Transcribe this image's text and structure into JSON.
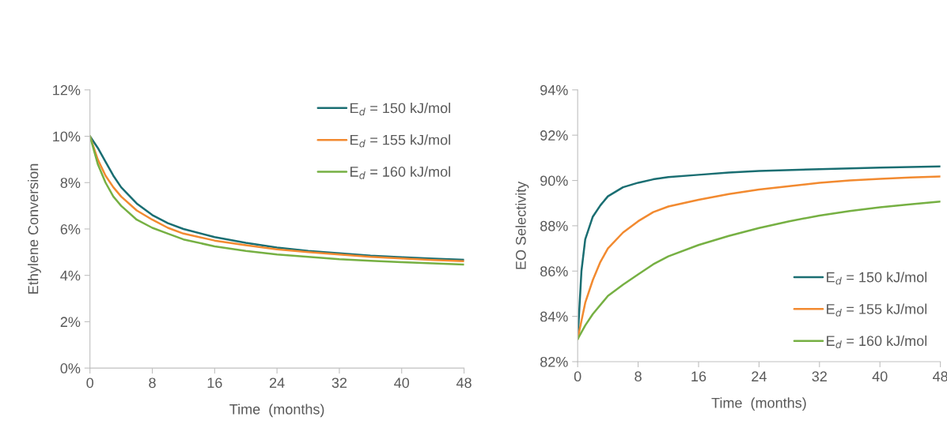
{
  "chart_data": [
    {
      "type": "line",
      "xlabel": "Time  (months)",
      "ylabel": "Ethylene Conversion",
      "xlim": [
        0,
        48
      ],
      "xticks": [
        0,
        8,
        16,
        24,
        32,
        40,
        48
      ],
      "ylim": [
        0,
        12
      ],
      "yticks": [
        {
          "value": 0,
          "label": "0%"
        },
        {
          "value": 2,
          "label": "2%"
        },
        {
          "value": 4,
          "label": "4%"
        },
        {
          "value": 6,
          "label": "6%"
        },
        {
          "value": 8,
          "label": "8%"
        },
        {
          "value": 10,
          "label": "10%"
        },
        {
          "value": 12,
          "label": "12%"
        }
      ],
      "grid": false,
      "legend": "top right",
      "marker": "none",
      "line_style": "solid",
      "series": [
        {
          "name": "E$_{d}$ = 150 kJ/mol",
          "color": "#1a6e72",
          "x": [
            0,
            1,
            2,
            3,
            4,
            6,
            8,
            10,
            12,
            16,
            20,
            24,
            28,
            32,
            36,
            40,
            44,
            48
          ],
          "values": [
            10,
            9.5,
            8.9,
            8.3,
            7.8,
            7.1,
            6.6,
            6.25,
            6.0,
            5.65,
            5.4,
            5.2,
            5.05,
            4.95,
            4.85,
            4.78,
            4.72,
            4.67
          ]
        },
        {
          "name": "E$_{d}$ = 155 kJ/mol",
          "color": "#f28a30",
          "x": [
            0,
            1,
            2,
            3,
            4,
            6,
            8,
            10,
            12,
            16,
            20,
            24,
            28,
            32,
            36,
            40,
            44,
            48
          ],
          "values": [
            10,
            9.0,
            8.3,
            7.8,
            7.4,
            6.8,
            6.4,
            6.05,
            5.8,
            5.5,
            5.3,
            5.12,
            5.0,
            4.9,
            4.8,
            4.73,
            4.66,
            4.61
          ]
        },
        {
          "name": "E$_{d}$ = 160 kJ/mol",
          "color": "#76b043",
          "x": [
            0,
            1,
            2,
            3,
            4,
            6,
            8,
            10,
            12,
            16,
            20,
            24,
            28,
            32,
            36,
            40,
            44,
            48
          ],
          "values": [
            10,
            8.8,
            8.0,
            7.4,
            7.0,
            6.4,
            6.05,
            5.8,
            5.55,
            5.25,
            5.05,
            4.9,
            4.8,
            4.7,
            4.63,
            4.57,
            4.52,
            4.47
          ]
        }
      ]
    },
    {
      "type": "line",
      "xlabel": "Time  (months)",
      "ylabel": "EO Selectivity",
      "xlim": [
        0,
        48
      ],
      "xticks": [
        0,
        8,
        16,
        24,
        32,
        40,
        48
      ],
      "ylim": [
        82,
        94
      ],
      "yticks": [
        {
          "value": 82,
          "label": "82%"
        },
        {
          "value": 84,
          "label": "84%"
        },
        {
          "value": 86,
          "label": "86%"
        },
        {
          "value": 88,
          "label": "88%"
        },
        {
          "value": 90,
          "label": "90%"
        },
        {
          "value": 92,
          "label": "92%"
        },
        {
          "value": 94,
          "label": "94%"
        }
      ],
      "grid": false,
      "legend": "bottom right",
      "marker": "none",
      "line_style": "solid",
      "series": [
        {
          "name": "E$_{d}$ = 150 kJ/mol",
          "color": "#1a6e72",
          "x": [
            0,
            0.5,
            1,
            2,
            3,
            4,
            6,
            8,
            10,
            12,
            16,
            20,
            24,
            32,
            40,
            48
          ],
          "values": [
            83,
            86,
            87.4,
            88.4,
            88.9,
            89.3,
            89.7,
            89.9,
            90.05,
            90.15,
            90.25,
            90.35,
            90.42,
            90.5,
            90.57,
            90.62
          ]
        },
        {
          "name": "E$_{d}$ = 155 kJ/mol",
          "color": "#f28a30",
          "x": [
            0,
            1,
            2,
            3,
            4,
            6,
            8,
            10,
            12,
            16,
            20,
            24,
            28,
            32,
            36,
            40,
            44,
            48
          ],
          "values": [
            83,
            84.6,
            85.6,
            86.4,
            87.0,
            87.7,
            88.2,
            88.6,
            88.85,
            89.15,
            89.4,
            89.6,
            89.75,
            89.9,
            90.0,
            90.07,
            90.13,
            90.18
          ]
        },
        {
          "name": "E$_{d}$ = 160 kJ/mol",
          "color": "#76b043",
          "x": [
            0,
            1,
            2,
            4,
            6,
            8,
            10,
            12,
            16,
            20,
            24,
            28,
            32,
            36,
            40,
            44,
            48
          ],
          "values": [
            83,
            83.6,
            84.1,
            84.9,
            85.4,
            85.85,
            86.3,
            86.65,
            87.15,
            87.55,
            87.9,
            88.2,
            88.45,
            88.65,
            88.82,
            88.95,
            89.07
          ]
        }
      ]
    }
  ]
}
